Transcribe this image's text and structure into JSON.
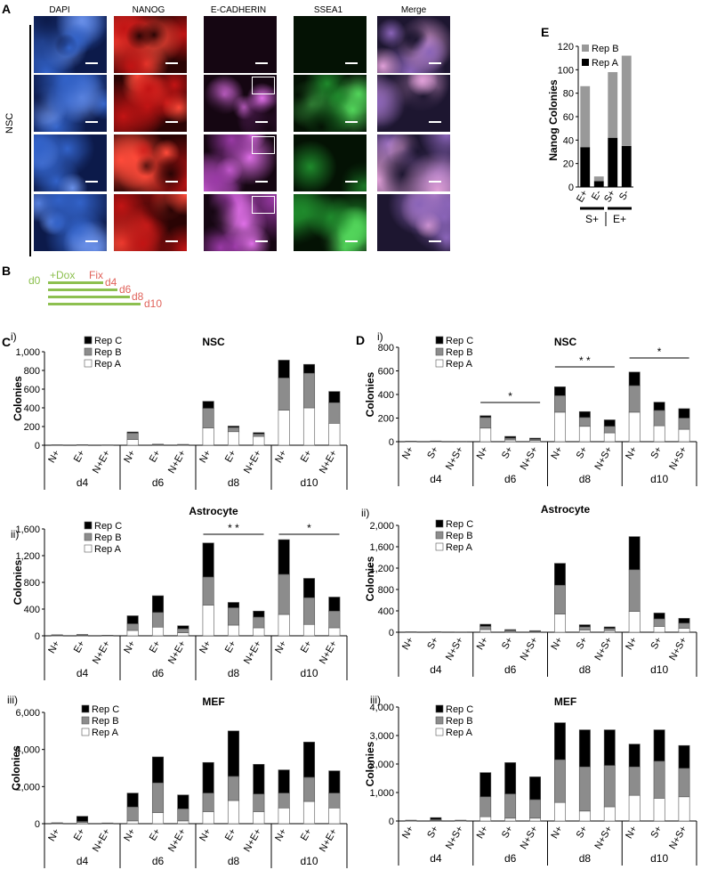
{
  "panelA": {
    "letter": "A",
    "columns": [
      "DAPI",
      "NANOG",
      "E-CADHERIN",
      "SSEA1",
      "Merge"
    ],
    "row_label": "NSC"
  },
  "panelB": {
    "letter": "B",
    "labels": [
      "d0",
      "+Dox",
      "Fix",
      "d4",
      "d6",
      "d8",
      "d10"
    ],
    "colors": {
      "dox": "#8dc050",
      "fix": "#e0635b"
    }
  },
  "panelC": {
    "letter": "C"
  },
  "panelD": {
    "letter": "D"
  },
  "panelE": {
    "letter": "E"
  },
  "colors": {
    "rep_a": "#ffffff",
    "rep_b": "#8c8c8c",
    "rep_c": "#000000",
    "edge": "#555555"
  },
  "chart_data": [
    {
      "id": "Ci",
      "panel_label": "i)",
      "title": "NSC",
      "type": "bar",
      "ylabel": "Colonies",
      "ylim": [
        0,
        1000
      ],
      "yticks": [
        "0",
        "200",
        "400",
        "600",
        "800",
        "1,000"
      ],
      "groups": [
        "d4",
        "d6",
        "d8",
        "d10"
      ],
      "categories": [
        "N+",
        "E+",
        "N+E+",
        "N+",
        "E+",
        "N+E+",
        "N+",
        "E+",
        "N+E+",
        "N+",
        "E+",
        "N+E+"
      ],
      "legend": [
        "Rep C",
        "Rep B",
        "Rep A"
      ],
      "series": [
        {
          "name": "Rep A",
          "values": [
            2,
            3,
            2,
            60,
            5,
            4,
            185,
            145,
            95,
            375,
            400,
            235
          ]
        },
        {
          "name": "Rep B",
          "values": [
            2,
            2,
            1,
            70,
            4,
            3,
            210,
            45,
            25,
            345,
            370,
            220
          ]
        },
        {
          "name": "Rep C",
          "values": [
            1,
            1,
            1,
            12,
            2,
            2,
            75,
            15,
            15,
            190,
            95,
            120
          ]
        }
      ],
      "annotations": []
    },
    {
      "id": "Cii",
      "panel_label": "ii)",
      "title": "Astrocyte",
      "type": "bar",
      "ylabel": "Colonies",
      "ylim": [
        0,
        1600
      ],
      "yticks": [
        "0",
        "400",
        "800",
        "1,200",
        "1,600"
      ],
      "groups": [
        "d4",
        "d6",
        "d8",
        "d10"
      ],
      "categories": [
        "N+",
        "E+",
        "N+E+",
        "N+",
        "E+",
        "N+E+",
        "N+",
        "E+",
        "N+E+",
        "N+",
        "E+",
        "N+E+"
      ],
      "legend": [
        "Rep C",
        "Rep B",
        "Rep A"
      ],
      "series": [
        {
          "name": "Rep A",
          "values": [
            4,
            6,
            3,
            80,
            130,
            45,
            460,
            160,
            120,
            320,
            170,
            120
          ]
        },
        {
          "name": "Rep B",
          "values": [
            6,
            8,
            3,
            100,
            220,
            60,
            420,
            260,
            160,
            600,
            400,
            250
          ]
        },
        {
          "name": "Rep C",
          "values": [
            5,
            6,
            3,
            120,
            250,
            45,
            510,
            80,
            90,
            520,
            290,
            210
          ]
        }
      ],
      "annotations": [
        "* *",
        "*"
      ]
    },
    {
      "id": "Ciii",
      "panel_label": "iii)",
      "title": "MEF",
      "type": "bar",
      "ylabel": "Colonies",
      "ylim": [
        0,
        6000
      ],
      "yticks": [
        "0",
        "2,000",
        "4,000",
        "6,000"
      ],
      "groups": [
        "d4",
        "d6",
        "d8",
        "d10"
      ],
      "categories": [
        "N+",
        "E+",
        "N+E+",
        "N+",
        "E+",
        "N+E+",
        "N+",
        "E+",
        "N+E+",
        "N+",
        "E+",
        "N+E+"
      ],
      "legend": [
        "Rep C",
        "Rep B",
        "Rep A"
      ],
      "series": [
        {
          "name": "Rep A",
          "values": [
            20,
            60,
            10,
            150,
            600,
            150,
            650,
            1250,
            650,
            850,
            1200,
            850
          ]
        },
        {
          "name": "Rep B",
          "values": [
            15,
            60,
            10,
            750,
            1600,
            650,
            1000,
            1300,
            950,
            800,
            1300,
            800
          ]
        },
        {
          "name": "Rep C",
          "values": [
            15,
            280,
            20,
            750,
            1400,
            750,
            1650,
            2450,
            1600,
            1250,
            1900,
            1200
          ]
        }
      ],
      "annotations": []
    },
    {
      "id": "Di",
      "panel_label": "i)",
      "title": "NSC",
      "type": "bar",
      "ylabel": "Colonies",
      "ylim": [
        0,
        800
      ],
      "yticks": [
        "0",
        "200",
        "400",
        "600",
        "800"
      ],
      "groups": [
        "d4",
        "d6",
        "d8",
        "d10"
      ],
      "categories": [
        "N+",
        "S+",
        "N+S+",
        "N+",
        "S+",
        "N+S+",
        "N+",
        "S+",
        "N+S+",
        "N+",
        "S+",
        "N+S+"
      ],
      "legend": [
        "Rep C",
        "Rep B",
        "Rep A"
      ],
      "series": [
        {
          "name": "Rep A",
          "values": [
            2,
            2,
            1,
            115,
            15,
            10,
            250,
            130,
            75,
            250,
            135,
            105
          ]
        },
        {
          "name": "Rep B",
          "values": [
            2,
            2,
            1,
            90,
            15,
            10,
            140,
            75,
            55,
            225,
            130,
            95
          ]
        },
        {
          "name": "Rep C",
          "values": [
            1,
            2,
            1,
            15,
            15,
            10,
            75,
            50,
            55,
            115,
            70,
            80
          ]
        }
      ],
      "annotations": [
        "*",
        "* *",
        "*"
      ]
    },
    {
      "id": "Dii",
      "panel_label": "ii)",
      "title": "Astrocyte",
      "type": "bar",
      "ylabel": "Colonies",
      "ylim": [
        0,
        2000
      ],
      "yticks": [
        "0",
        "400",
        "800",
        "1,200",
        "1,600",
        "2,000"
      ],
      "groups": [
        "d4",
        "d6",
        "d8",
        "d10"
      ],
      "categories": [
        "N+",
        "S+",
        "N+S+",
        "N+",
        "S+",
        "N+S+",
        "N+",
        "S+",
        "N+S+",
        "N+",
        "S+",
        "N+S+"
      ],
      "legend": [
        "Rep C",
        "Rep B",
        "Rep A"
      ],
      "series": [
        {
          "name": "Rep A",
          "values": [
            3,
            3,
            2,
            50,
            15,
            10,
            340,
            40,
            30,
            390,
            110,
            75
          ]
        },
        {
          "name": "Rep B",
          "values": [
            3,
            3,
            2,
            60,
            20,
            10,
            540,
            60,
            40,
            780,
            140,
            95
          ]
        },
        {
          "name": "Rep C",
          "values": [
            3,
            3,
            2,
            40,
            15,
            10,
            410,
            40,
            30,
            620,
            110,
            90
          ]
        }
      ],
      "annotations": []
    },
    {
      "id": "Diii",
      "panel_label": "iii)",
      "title": "MEF",
      "type": "bar",
      "ylabel": "Colonies",
      "ylim": [
        0,
        4000
      ],
      "yticks": [
        "0",
        "1,000",
        "2,000",
        "3,000",
        "4,000"
      ],
      "groups": [
        "d4",
        "d6",
        "d8",
        "d10"
      ],
      "categories": [
        "N+",
        "S+",
        "N+S+",
        "N+",
        "S+",
        "N+S+",
        "N+",
        "S+",
        "N+S+",
        "N+",
        "S+",
        "N+S+"
      ],
      "legend": [
        "Rep C",
        "Rep B",
        "Rep A"
      ],
      "series": [
        {
          "name": "Rep A",
          "values": [
            10,
            20,
            10,
            150,
            100,
            100,
            650,
            350,
            500,
            900,
            800,
            850
          ]
        },
        {
          "name": "Rep B",
          "values": [
            10,
            30,
            10,
            700,
            850,
            650,
            1500,
            1550,
            1450,
            1000,
            1300,
            1000
          ]
        },
        {
          "name": "Rep C",
          "values": [
            10,
            70,
            10,
            850,
            1100,
            800,
            1300,
            1300,
            1250,
            800,
            1100,
            800
          ]
        }
      ],
      "annotations": []
    },
    {
      "id": "E",
      "panel_label": "",
      "title": "",
      "type": "bar",
      "ylabel": "Nanog Colonies",
      "ylim": [
        0,
        120
      ],
      "yticks": [
        "0",
        "20",
        "40",
        "60",
        "80",
        "100",
        "120"
      ],
      "groups": [
        "S+",
        "E+"
      ],
      "categories": [
        "E+",
        "E-",
        "S+",
        "S-"
      ],
      "legend": [
        "Rep B",
        "Rep A"
      ],
      "series": [
        {
          "name": "Rep A",
          "values": [
            34,
            5,
            42,
            35
          ]
        },
        {
          "name": "Rep B",
          "values": [
            52,
            4,
            56,
            77
          ]
        }
      ],
      "annotations": []
    }
  ]
}
